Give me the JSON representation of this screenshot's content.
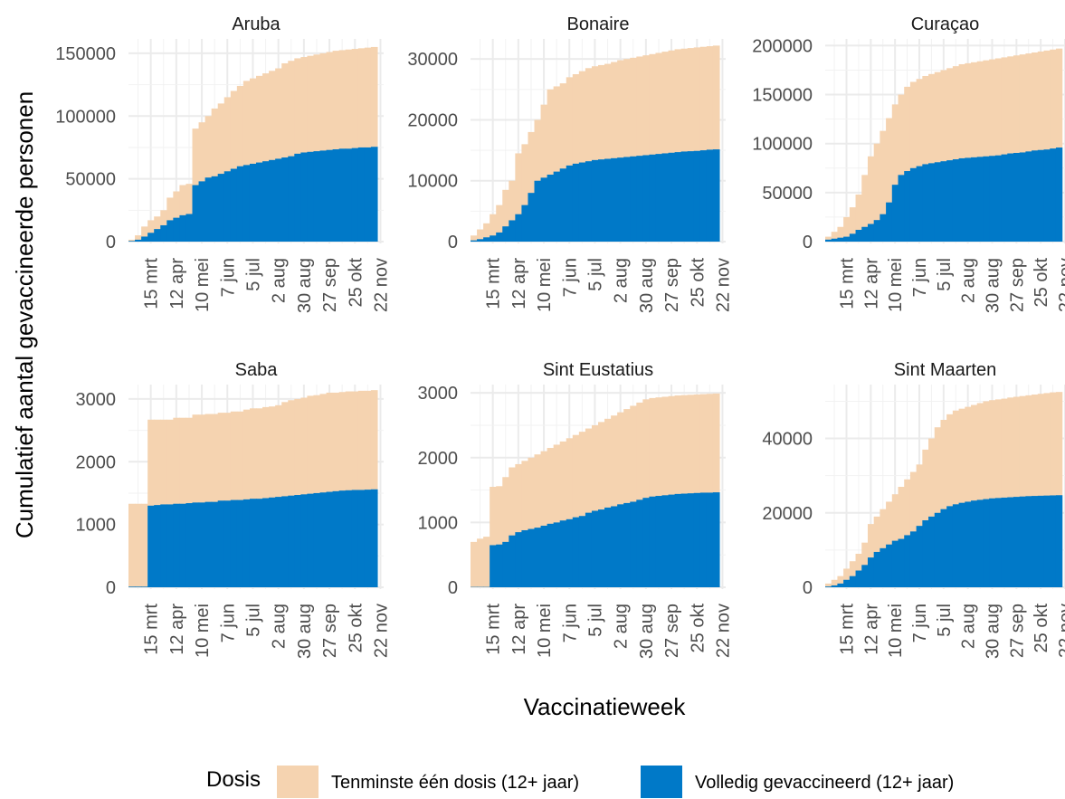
{
  "chart_data": {
    "type": "area",
    "xlabel": "Vaccinatieweek",
    "ylabel": "Cumulatief aantal gevaccineerde personen",
    "x_tick_labels": [
      "15 mrt",
      "12 apr",
      "10 mei",
      "7 jun",
      "5 jul",
      "2 aug",
      "30 aug",
      "27 sep",
      "25 okt",
      "22 nov"
    ],
    "x_tick_weeks": [
      3,
      7,
      11,
      15,
      19,
      23,
      27,
      31,
      35,
      39
    ],
    "x_range_weeks": [
      0,
      39
    ],
    "grid": true,
    "stacked": false,
    "legend": {
      "title": "Dosis",
      "position": "bottom",
      "entries": [
        {
          "label": "Tenminste één dosis (12+ jaar)",
          "color": "#F5D3B0"
        },
        {
          "label": "Volledig gevaccineerd (12+ jaar)",
          "color": "#0079C8"
        }
      ]
    },
    "panels": [
      {
        "name": "Aruba",
        "ylim": [
          0,
          160000
        ],
        "y_ticks": [
          0,
          50000,
          100000,
          150000
        ],
        "series": [
          {
            "name": "Tenminste één dosis (12+ jaar)",
            "values": [
              1500,
              5000,
              12000,
              17000,
              20000,
              25000,
              35000,
              40000,
              45000,
              46000,
              90000,
              95000,
              100000,
              106000,
              110000,
              115000,
              120000,
              124000,
              128000,
              130000,
              132000,
              134000,
              136000,
              138000,
              142000,
              144000,
              146000,
              147000,
              148000,
              149000,
              150000,
              151000,
              152000,
              152500,
              153000,
              153500,
              154000,
              154500,
              155000
            ]
          },
          {
            "name": "Volledig gevaccineerd (12+ jaar)",
            "values": [
              500,
              1500,
              4000,
              7000,
              10000,
              13000,
              17000,
              19000,
              21000,
              22000,
              45000,
              48000,
              51000,
              52000,
              54000,
              56000,
              58000,
              60000,
              61000,
              62000,
              63000,
              64000,
              65000,
              66000,
              67000,
              68000,
              70000,
              71000,
              71500,
              72000,
              72500,
              73000,
              73500,
              74000,
              74000,
              74500,
              75000,
              75000,
              75500
            ]
          }
        ]
      },
      {
        "name": "Bonaire",
        "ylim": [
          0,
          33000
        ],
        "y_ticks": [
          0,
          10000,
          20000,
          30000
        ],
        "series": [
          {
            "name": "Tenminste één dosis (12+ jaar)",
            "values": [
              1000,
              2000,
              3000,
              4500,
              6000,
              8500,
              10000,
              14500,
              16000,
              18000,
              20000,
              22500,
              25000,
              25500,
              26000,
              27000,
              27500,
              28000,
              28500,
              28800,
              29000,
              29200,
              29500,
              29800,
              30000,
              30200,
              30400,
              30600,
              30800,
              31000,
              31200,
              31400,
              31600,
              31700,
              31800,
              31900,
              32000,
              32100,
              32200
            ]
          },
          {
            "name": "Volledig gevaccineerd (12+ jaar)",
            "values": [
              200,
              400,
              700,
              1000,
              1500,
              2500,
              3500,
              4500,
              6000,
              8000,
              10000,
              10500,
              11000,
              11500,
              12000,
              12500,
              12800,
              13000,
              13200,
              13400,
              13500,
              13600,
              13700,
              13800,
              13900,
              14000,
              14100,
              14200,
              14300,
              14400,
              14500,
              14600,
              14700,
              14800,
              14850,
              14900,
              15000,
              15100,
              15150
            ]
          }
        ]
      },
      {
        "name": "Curaçao",
        "ylim": [
          0,
          205000
        ],
        "y_ticks": [
          0,
          50000,
          100000,
          150000,
          200000
        ],
        "series": [
          {
            "name": "Tenminste één dosis (12+ jaar)",
            "values": [
              5000,
              10000,
              15000,
              25000,
              35000,
              48000,
              68000,
              87000,
              100000,
              113000,
              126000,
              140000,
              150000,
              158000,
              163000,
              166000,
              169000,
              171000,
              173000,
              175000,
              177000,
              179000,
              181000,
              182000,
              183000,
              184000,
              185000,
              186000,
              187000,
              188000,
              189000,
              190000,
              191000,
              192000,
              193000,
              194000,
              195000,
              196000,
              197000
            ]
          },
          {
            "name": "Volledig gevaccineerd (12+ jaar)",
            "values": [
              2000,
              3000,
              4000,
              5000,
              8000,
              12000,
              15000,
              18000,
              22000,
              28000,
              40000,
              58000,
              68000,
              72000,
              75000,
              77000,
              79000,
              80000,
              81000,
              82000,
              83000,
              84000,
              85000,
              85500,
              86000,
              86500,
              87000,
              87500,
              88000,
              89000,
              90000,
              90500,
              91000,
              92000,
              93000,
              93500,
              94000,
              95000,
              96000
            ]
          }
        ]
      },
      {
        "name": "Saba",
        "ylim": [
          0,
          3200
        ],
        "y_ticks": [
          0,
          1000,
          2000,
          3000
        ],
        "series": [
          {
            "name": "Tenminste één dosis (12+ jaar)",
            "values": [
              1330,
              1330,
              1330,
              2670,
              2670,
              2670,
              2670,
              2700,
              2700,
              2700,
              2750,
              2750,
              2760,
              2760,
              2780,
              2780,
              2800,
              2800,
              2830,
              2850,
              2850,
              2870,
              2880,
              2900,
              2950,
              2980,
              3000,
              3020,
              3050,
              3060,
              3080,
              3100,
              3100,
              3110,
              3120,
              3120,
              3130,
              3130,
              3140
            ]
          },
          {
            "name": "Volledig gevaccineerd (12+ jaar)",
            "values": [
              10,
              10,
              10,
              1300,
              1310,
              1320,
              1320,
              1330,
              1330,
              1340,
              1350,
              1350,
              1360,
              1360,
              1380,
              1380,
              1390,
              1390,
              1400,
              1410,
              1410,
              1420,
              1430,
              1440,
              1450,
              1460,
              1470,
              1480,
              1490,
              1500,
              1510,
              1520,
              1530,
              1540,
              1545,
              1550,
              1550,
              1555,
              1560
            ]
          }
        ]
      },
      {
        "name": "Sint Eustatius",
        "ylim": [
          0,
          3100
        ],
        "y_ticks": [
          0,
          1000,
          2000,
          3000
        ],
        "series": [
          {
            "name": "Tenminste één dosis (12+ jaar)",
            "values": [
              700,
              750,
              780,
              1550,
              1560,
              1700,
              1850,
              1900,
              1950,
              2000,
              2050,
              2100,
              2150,
              2200,
              2250,
              2300,
              2350,
              2400,
              2450,
              2500,
              2550,
              2600,
              2650,
              2700,
              2750,
              2800,
              2850,
              2900,
              2920,
              2930,
              2940,
              2950,
              2960,
              2965,
              2970,
              2975,
              2980,
              2985,
              2990
            ]
          },
          {
            "name": "Volledig gevaccineerd (12+ jaar)",
            "values": [
              5,
              5,
              5,
              650,
              660,
              700,
              800,
              850,
              880,
              900,
              920,
              950,
              980,
              1000,
              1030,
              1050,
              1080,
              1100,
              1150,
              1180,
              1200,
              1230,
              1250,
              1280,
              1300,
              1320,
              1350,
              1380,
              1400,
              1410,
              1420,
              1430,
              1440,
              1445,
              1450,
              1455,
              1460,
              1460,
              1465
            ]
          }
        ]
      },
      {
        "name": "Sint Maarten",
        "ylim": [
          0,
          54000
        ],
        "y_ticks": [
          0,
          20000,
          40000
        ],
        "series": [
          {
            "name": "Tenminste één dosis (12+ jaar)",
            "values": [
              1000,
              2000,
              3000,
              5000,
              7000,
              9000,
              12000,
              17000,
              19000,
              21000,
              23000,
              25000,
              27000,
              29000,
              31000,
              33000,
              37000,
              40000,
              43000,
              45000,
              46500,
              47500,
              48000,
              48500,
              49000,
              49500,
              50000,
              50300,
              50500,
              50700,
              51000,
              51200,
              51400,
              51600,
              51800,
              52000,
              52200,
              52400,
              52500
            ]
          },
          {
            "name": "Volledig gevaccineerd (12+ jaar)",
            "values": [
              200,
              500,
              1000,
              2000,
              3000,
              4500,
              6000,
              8000,
              9500,
              10500,
              11500,
              12500,
              13000,
              14000,
              15000,
              16500,
              18000,
              19000,
              20000,
              21000,
              21800,
              22300,
              22700,
              23000,
              23300,
              23500,
              23700,
              23900,
              24000,
              24100,
              24200,
              24300,
              24400,
              24500,
              24550,
              24600,
              24650,
              24700,
              24750
            ]
          }
        ]
      }
    ]
  }
}
